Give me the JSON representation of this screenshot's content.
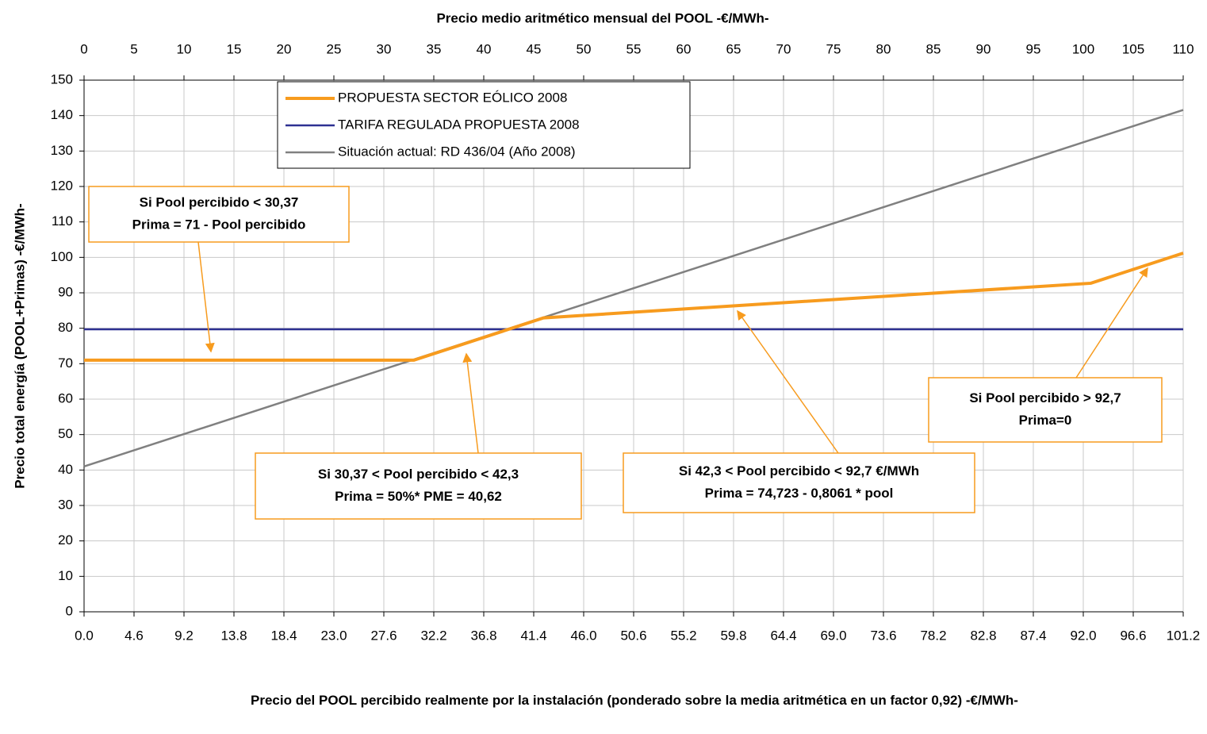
{
  "chart_data": {
    "type": "line",
    "x2_title": "Precio medio aritmético mensual del POOL -€/MWh-",
    "y_title": "Precio total energía (POOL+Primas) -€/MWh-",
    "x_title": "Precio del POOL percibido realmente por la instalación (ponderado sobre la media aritmética en un factor 0,92) -€/MWh-",
    "xlim": [
      0,
      101.2
    ],
    "xticks": [
      {
        "value": 0,
        "label": "0.0"
      },
      4.6,
      9.2,
      13.8,
      18.4,
      {
        "value": 23,
        "label": "23.0"
      },
      27.6,
      32.2,
      36.8,
      41.4,
      {
        "value": 46,
        "label": "46.0"
      },
      50.6,
      55.2,
      59.8,
      64.4,
      {
        "value": 69,
        "label": "69.0"
      },
      73.6,
      78.2,
      82.8,
      87.4,
      {
        "value": 92,
        "label": "92.0"
      },
      96.6,
      101.2
    ],
    "x2lim": [
      0,
      110
    ],
    "x2ticks": [
      0,
      5,
      10,
      15,
      20,
      25,
      30,
      35,
      40,
      45,
      50,
      55,
      60,
      65,
      70,
      75,
      80,
      85,
      90,
      95,
      100,
      105,
      110
    ],
    "ylim": [
      0,
      150
    ],
    "yticks": [
      0,
      10,
      20,
      30,
      40,
      50,
      60,
      70,
      80,
      90,
      100,
      110,
      120,
      130,
      140,
      150
    ],
    "grid": true,
    "legend": "top-center",
    "series": [
      {
        "name": "PROPUESTA SECTOR EÓLICO 2008",
        "color": "#f79b1e",
        "width": 4,
        "x": [
          0,
          30.37,
          42.3,
          92.7,
          101.2
        ],
        "values": [
          71,
          70.99,
          82.92,
          92.7,
          101.2
        ]
      },
      {
        "name": "TARIFA REGULADA PROPUESTA 2008",
        "color": "#2e3192",
        "width": 2.5,
        "x": [
          0,
          101.2
        ],
        "values": [
          79.7,
          79.7
        ]
      },
      {
        "name": "Situación actual: RD 436/04 (Año 2008)",
        "color": "#808080",
        "width": 2.5,
        "x": [
          0,
          101.2
        ],
        "values": [
          41,
          141.6
        ]
      }
    ],
    "annotations": [
      {
        "lines": [
          "Si Pool percibido  < 30,37",
          "Prima = 71 - Pool percibido"
        ]
      },
      {
        "lines": [
          "Si 30,37 < Pool percibido < 42,3",
          "Prima = 50%* PME = 40,62"
        ]
      },
      {
        "lines": [
          "Si 42,3 < Pool percibido < 92,7 €/MWh",
          "Prima = 74,723 - 0,8061 * pool"
        ]
      },
      {
        "lines": [
          "Si Pool percibido > 92,7",
          "Prima=0"
        ]
      }
    ]
  }
}
